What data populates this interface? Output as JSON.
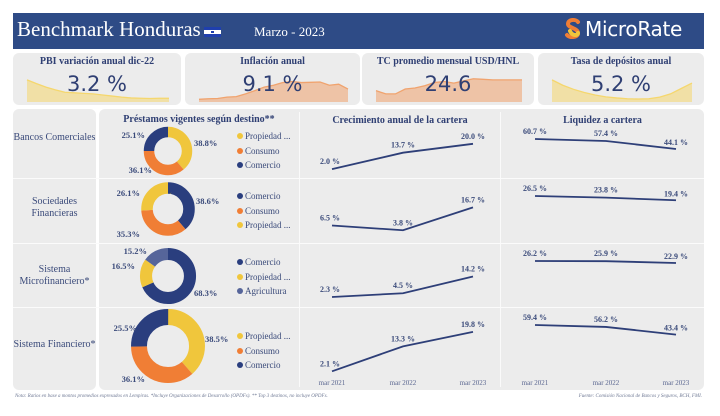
{
  "header": {
    "title": "Benchmark Honduras",
    "flag_icon": "honduras-flag-icon",
    "date": "Marzo - 2023",
    "brand": "MicroRate",
    "brand_icon": "microrate-s-logo-icon",
    "background": "#2e4b86"
  },
  "kpis": [
    {
      "title": "PBI variación anual dic-22",
      "value": "3.2 %",
      "color": "#f5d76e",
      "trend": [
        0.82,
        0.68,
        0.55,
        0.45,
        0.36,
        0.34,
        0.32,
        0.3,
        0.26,
        0.22,
        0.18,
        0.15,
        0.14,
        0.13,
        0.14,
        0.14
      ]
    },
    {
      "title": "Inflación anual",
      "value": "9.1 %",
      "color": "#f0a36e",
      "trend": [
        0.1,
        0.12,
        0.13,
        0.18,
        0.2,
        0.3,
        0.42,
        0.55,
        0.62,
        0.72,
        0.76,
        0.72,
        0.73,
        0.74,
        0.62,
        0.66,
        0.48
      ]
    },
    {
      "title": "TC promedio mensual USD/HNL",
      "value": "24.6",
      "color": "#f0a36e",
      "trend": [
        0.42,
        0.3,
        0.3,
        0.48,
        0.52,
        0.6,
        0.72,
        0.76,
        0.7,
        0.78,
        0.86,
        0.84,
        0.82,
        0.82,
        0.82,
        0.82
      ]
    },
    {
      "title": "Tasa de depósitos anual",
      "value": "5.2 %",
      "color": "#f5d76e",
      "trend": [
        0.82,
        0.62,
        0.47,
        0.35,
        0.26,
        0.19,
        0.15,
        0.12,
        0.11,
        0.12,
        0.18,
        0.3,
        0.5,
        0.7
      ]
    }
  ],
  "columns": {
    "loans": "Préstamos vigentes según destino**",
    "growth": "Crecimiento anual de la cartera",
    "liquidity": "Liquidez a cartera"
  },
  "x_axis": [
    "mar 2021",
    "mar 2022",
    "mar 2023"
  ],
  "segment_colors": {
    "Propiedad ...": "#f0c63c",
    "Consumo": "#f07e35",
    "Comercio": "#2a3e7e",
    "Agricultura": "#56659a"
  },
  "rows": [
    {
      "label": "Bancos Comerciales",
      "donut": [
        {
          "name": "Propiedad ...",
          "pct": 38.8,
          "label": "38.8%"
        },
        {
          "name": "Consumo",
          "pct": 36.1,
          "label": "36.1%"
        },
        {
          "name": "Comercio",
          "pct": 25.1,
          "label": "25.1%"
        }
      ],
      "legend": [
        "Propiedad ...",
        "Consumo",
        "Comercio"
      ],
      "growth": [
        2.0,
        13.7,
        20.0
      ],
      "growth_labels": [
        "2.0 %",
        "13.7 %",
        "20.0 %"
      ],
      "liquidity": [
        60.7,
        57.4,
        44.1
      ],
      "liquidity_labels": [
        "60.7 %",
        "57.4 %",
        "44.1 %"
      ]
    },
    {
      "label": "Sociedades Financieras",
      "donut": [
        {
          "name": "Comercio",
          "pct": 38.6,
          "label": "38.6%"
        },
        {
          "name": "Consumo",
          "pct": 35.3,
          "label": "35.3%"
        },
        {
          "name": "Propiedad ...",
          "pct": 26.1,
          "label": "26.1%"
        }
      ],
      "legend": [
        "Comercio",
        "Consumo",
        "Propiedad ..."
      ],
      "growth": [
        6.5,
        3.8,
        16.7
      ],
      "growth_labels": [
        "6.5 %",
        "3.8 %",
        "16.7 %"
      ],
      "liquidity": [
        26.5,
        23.8,
        19.4
      ],
      "liquidity_labels": [
        "26.5 %",
        "23.8 %",
        "19.4 %"
      ]
    },
    {
      "label": "Sistema Microfinanciero*",
      "donut": [
        {
          "name": "Comercio",
          "pct": 68.3,
          "label": "68.3%"
        },
        {
          "name": "Propiedad ...",
          "pct": 16.5,
          "label": "16.5%"
        },
        {
          "name": "Agricultura",
          "pct": 15.2,
          "label": "15.2%"
        }
      ],
      "legend": [
        "Comercio",
        "Propiedad ...",
        "Agricultura"
      ],
      "growth": [
        2.3,
        4.5,
        14.2
      ],
      "growth_labels": [
        "2.3 %",
        "4.5 %",
        "14.2 %"
      ],
      "liquidity": [
        26.2,
        25.9,
        22.9
      ],
      "liquidity_labels": [
        "26.2 %",
        "25.9 %",
        "22.9 %"
      ]
    },
    {
      "label": "Sistema Financiero*",
      "donut": [
        {
          "name": "Propiedad ...",
          "pct": 38.5,
          "label": "38.5%"
        },
        {
          "name": "Consumo",
          "pct": 36.1,
          "label": "36.1%"
        },
        {
          "name": "Comercio",
          "pct": 25.5,
          "label": "25.5%"
        }
      ],
      "legend": [
        "Propiedad ...",
        "Consumo",
        "Comercio"
      ],
      "growth": [
        2.1,
        13.3,
        19.8
      ],
      "growth_labels": [
        "2.1 %",
        "13.3 %",
        "19.8 %"
      ],
      "liquidity": [
        59.4,
        56.2,
        43.4
      ],
      "liquidity_labels": [
        "59.4 %",
        "56.2 %",
        "43.4 %"
      ]
    }
  ],
  "footer": {
    "note": "Nota: Ratios en base a montos promedios expresados en Lempiras. *Incluye Organizaciones de Desarrollo (OPDFs). ** Top 3 destinos, no incluye OPDFs.",
    "source": "Fuente: Comisión Nacional de Bancos y Seguros, BCH, FMI."
  },
  "chart_data": [
    {
      "type": "line",
      "title": "Crecimiento anual de la cartera",
      "x": [
        "mar 2021",
        "mar 2022",
        "mar 2023"
      ],
      "series": [
        {
          "name": "Bancos Comerciales",
          "values": [
            2.0,
            13.7,
            20.0
          ]
        },
        {
          "name": "Sociedades Financieras",
          "values": [
            6.5,
            3.8,
            16.7
          ]
        },
        {
          "name": "Sistema Microfinanciero*",
          "values": [
            2.3,
            4.5,
            14.2
          ]
        },
        {
          "name": "Sistema Financiero*",
          "values": [
            2.1,
            13.3,
            19.8
          ]
        }
      ],
      "ylabel": "%"
    },
    {
      "type": "line",
      "title": "Liquidez a cartera",
      "x": [
        "mar 2021",
        "mar 2022",
        "mar 2023"
      ],
      "series": [
        {
          "name": "Bancos Comerciales",
          "values": [
            60.7,
            57.4,
            44.1
          ]
        },
        {
          "name": "Sociedades Financieras",
          "values": [
            26.5,
            23.8,
            19.4
          ]
        },
        {
          "name": "Sistema Microfinanciero*",
          "values": [
            26.2,
            25.9,
            22.9
          ]
        },
        {
          "name": "Sistema Financiero*",
          "values": [
            59.4,
            56.2,
            43.4
          ]
        }
      ],
      "ylabel": "%"
    },
    {
      "type": "pie",
      "title": "Préstamos vigentes según destino**",
      "series": [
        {
          "name": "Bancos Comerciales",
          "categories": [
            "Propiedad ...",
            "Consumo",
            "Comercio"
          ],
          "values": [
            38.8,
            36.1,
            25.1
          ]
        },
        {
          "name": "Sociedades Financieras",
          "categories": [
            "Comercio",
            "Consumo",
            "Propiedad ..."
          ],
          "values": [
            38.6,
            35.3,
            26.1
          ]
        },
        {
          "name": "Sistema Microfinanciero*",
          "categories": [
            "Comercio",
            "Propiedad ...",
            "Agricultura"
          ],
          "values": [
            68.3,
            16.5,
            15.2
          ]
        },
        {
          "name": "Sistema Financiero*",
          "categories": [
            "Propiedad ...",
            "Consumo",
            "Comercio"
          ],
          "values": [
            38.5,
            36.1,
            25.5
          ]
        }
      ]
    }
  ]
}
